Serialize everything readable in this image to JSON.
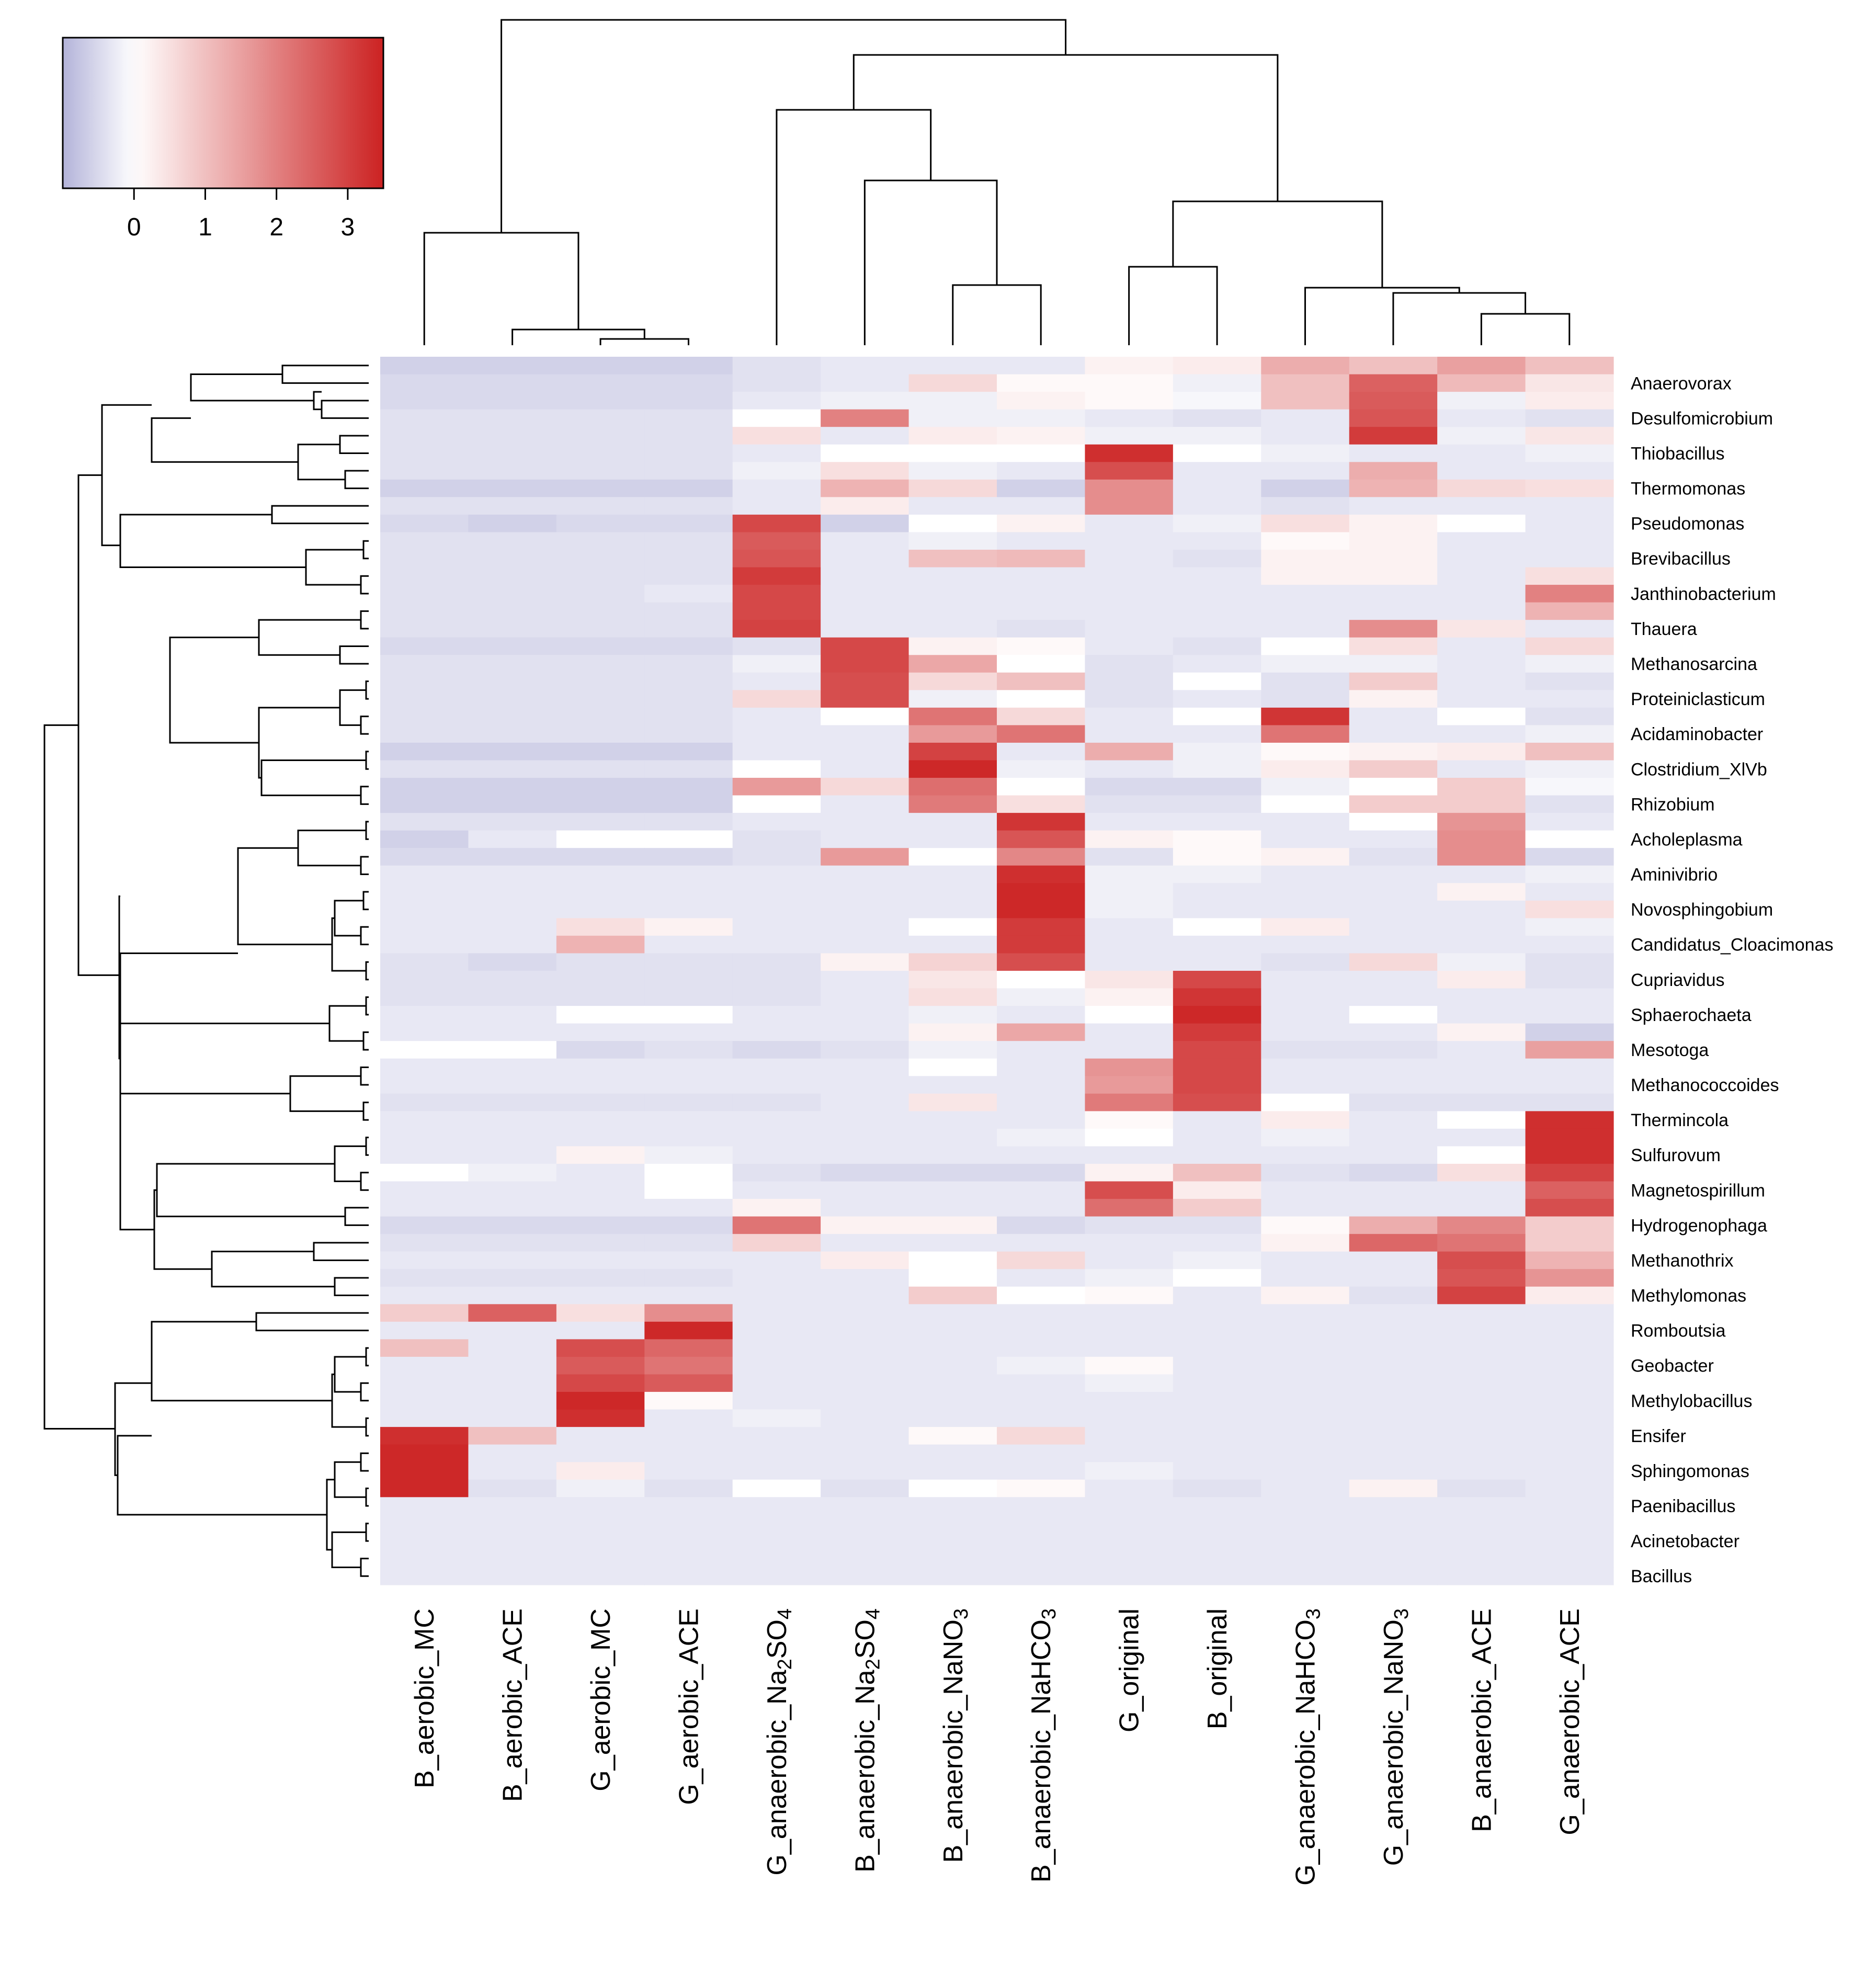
{
  "chart_data": {
    "type": "heatmap",
    "title": "",
    "xlabel": "",
    "ylabel": "",
    "columns": [
      "B_aerobic_MC",
      "B_aerobic_ACE",
      "G_aerobic_MC",
      "G_aerobic_ACE",
      "G_anaerobic_Na2SO4",
      "B_anaerobic_Na2SO4",
      "B_anaerobic_NaNO3",
      "B_anaerobic_NaHCO3",
      "G_original",
      "B_original",
      "G_anaerobic_NaHCO3",
      "G_anaerobic_NaNO3",
      "B_anaerobic_ACE",
      "G_anaerobic_ACE"
    ],
    "column_labels": [
      {
        "base": "B_aerobic_MC",
        "sub": "",
        "tail": ""
      },
      {
        "base": "B_aerobic_ACE",
        "sub": "",
        "tail": ""
      },
      {
        "base": "G_aerobic_MC",
        "sub": "",
        "tail": ""
      },
      {
        "base": "G_aerobic_ACE",
        "sub": "",
        "tail": ""
      },
      {
        "base": "G_anaerobic_Na",
        "sub": "2",
        "tail": "SO",
        "sub2": "4"
      },
      {
        "base": "B_anaerobic_Na",
        "sub": "2",
        "tail": "SO",
        "sub2": "4"
      },
      {
        "base": "B_anaerobic_NaNO",
        "sub": "3",
        "tail": ""
      },
      {
        "base": "B_anaerobic_NaHCO",
        "sub": "3",
        "tail": ""
      },
      {
        "base": "G_original",
        "sub": "",
        "tail": ""
      },
      {
        "base": "B_original",
        "sub": "",
        "tail": ""
      },
      {
        "base": "G_anaerobic_NaHCO",
        "sub": "3",
        "tail": ""
      },
      {
        "base": "G_anaerobic_NaNO",
        "sub": "3",
        "tail": ""
      },
      {
        "base": "B_anaerobic_ACE",
        "sub": "",
        "tail": ""
      },
      {
        "base": "G_anaerobic_ACE",
        "sub": "",
        "tail": ""
      }
    ],
    "row_labels": [
      "Anaerovorax",
      "Desulfomicrobium",
      "Thiobacillus",
      "Thermomonas",
      "Pseudomonas",
      "Brevibacillus",
      "Janthinobacterium",
      "Thauera",
      "Methanosarcina",
      "Proteiniclasticum",
      "Acidaminobacter",
      "Clostridium_XlVb",
      "Rhizobium",
      "Acholeplasma",
      "Aminivibrio",
      "Novosphingobium",
      "Candidatus_Cloacimonas",
      "Cupriavidus",
      "Sphaerochaeta",
      "Mesotoga",
      "Methanococcoides",
      "Thermincola",
      "Sulfurovum",
      "Magnetospirillum",
      "Hydrogenophaga",
      "Methanothrix",
      "Methylomonas",
      "Romboutsia",
      "Geobacter",
      "Methylobacillus",
      "Ensifer",
      "Sphingomonas",
      "Paenibacillus",
      "Acinetobacter",
      "Bacillus"
    ],
    "n_rows": 70,
    "labeled_row_positions": [
      1,
      3,
      5,
      7,
      9,
      11,
      13,
      15,
      17,
      19,
      21,
      23,
      25,
      27,
      29,
      31,
      33,
      35,
      37,
      39,
      41,
      43,
      45,
      47,
      49,
      51,
      53,
      55,
      57,
      59,
      61,
      63,
      65,
      67,
      69
    ],
    "values": [
      [
        -0.6,
        -0.6,
        -0.6,
        -0.6,
        -0.4,
        -0.3,
        -0.3,
        -0.3,
        0.2,
        0.3,
        1.3,
        1.0,
        1.5,
        1.0
      ],
      [
        -0.5,
        -0.5,
        -0.5,
        -0.5,
        -0.4,
        -0.3,
        0.6,
        0.1,
        0.1,
        -0.2,
        1.0,
        2.5,
        1.1,
        0.4
      ],
      [
        -0.5,
        -0.5,
        -0.5,
        -0.5,
        -0.3,
        -0.2,
        -0.2,
        0.2,
        0.1,
        -0.1,
        1.0,
        2.6,
        -0.2,
        0.3
      ],
      [
        -0.4,
        -0.4,
        -0.4,
        -0.4,
        0.0,
        2.0,
        -0.2,
        -0.2,
        -0.3,
        -0.4,
        -0.3,
        2.7,
        -0.3,
        -0.4
      ],
      [
        -0.4,
        -0.4,
        -0.4,
        -0.4,
        0.5,
        -0.3,
        0.3,
        0.2,
        -0.2,
        -0.2,
        -0.3,
        3.1,
        -0.2,
        0.4
      ],
      [
        -0.4,
        -0.4,
        -0.4,
        -0.4,
        -0.3,
        0.0,
        0.0,
        0.0,
        3.3,
        0.0,
        -0.2,
        -0.3,
        -0.3,
        -0.2
      ],
      [
        -0.4,
        -0.4,
        -0.4,
        -0.4,
        -0.2,
        0.5,
        -0.2,
        -0.3,
        2.8,
        -0.3,
        -0.3,
        1.3,
        -0.3,
        -0.3
      ],
      [
        -0.6,
        -0.6,
        -0.6,
        -0.6,
        -0.3,
        1.2,
        0.6,
        -0.6,
        1.8,
        -0.3,
        -0.6,
        1.2,
        0.6,
        0.5
      ],
      [
        -0.4,
        -0.4,
        -0.4,
        -0.4,
        -0.3,
        0.3,
        -0.3,
        -0.3,
        1.8,
        -0.3,
        -0.4,
        -0.3,
        -0.3,
        -0.3
      ],
      [
        -0.5,
        -0.6,
        -0.5,
        -0.5,
        2.9,
        -0.6,
        0.0,
        0.2,
        -0.3,
        -0.2,
        0.5,
        0.2,
        0.0,
        -0.3
      ],
      [
        -0.4,
        -0.4,
        -0.4,
        -0.4,
        2.6,
        -0.3,
        -0.2,
        -0.3,
        -0.3,
        -0.3,
        0.1,
        0.2,
        -0.3,
        -0.3
      ],
      [
        -0.4,
        -0.4,
        -0.4,
        -0.4,
        2.7,
        -0.3,
        1.0,
        1.1,
        -0.3,
        -0.4,
        0.2,
        0.2,
        -0.3,
        -0.3
      ],
      [
        -0.4,
        -0.4,
        -0.4,
        -0.4,
        3.1,
        -0.3,
        -0.3,
        -0.3,
        -0.3,
        -0.3,
        0.2,
        0.2,
        -0.3,
        0.5
      ],
      [
        -0.4,
        -0.4,
        -0.4,
        -0.3,
        2.9,
        -0.3,
        -0.3,
        -0.3,
        -0.3,
        -0.3,
        -0.3,
        -0.3,
        -0.3,
        2.0
      ],
      [
        -0.4,
        -0.4,
        -0.4,
        -0.4,
        2.9,
        -0.3,
        -0.3,
        -0.3,
        -0.3,
        -0.3,
        -0.3,
        -0.3,
        -0.3,
        1.2
      ],
      [
        -0.4,
        -0.4,
        -0.4,
        -0.4,
        3.0,
        -0.3,
        -0.3,
        -0.4,
        -0.3,
        -0.3,
        -0.3,
        1.8,
        0.4,
        -0.3
      ],
      [
        -0.5,
        -0.5,
        -0.5,
        -0.5,
        -0.4,
        2.9,
        0.2,
        0.1,
        -0.3,
        -0.4,
        0.0,
        0.5,
        -0.3,
        0.6
      ],
      [
        -0.4,
        -0.4,
        -0.4,
        -0.4,
        -0.2,
        2.9,
        1.4,
        0.0,
        -0.4,
        -0.3,
        -0.2,
        -0.2,
        -0.3,
        -0.2
      ],
      [
        -0.4,
        -0.4,
        -0.4,
        -0.4,
        -0.3,
        2.8,
        0.6,
        1.0,
        -0.4,
        0.0,
        -0.4,
        0.8,
        -0.3,
        -0.4
      ],
      [
        -0.4,
        -0.4,
        -0.4,
        -0.4,
        0.6,
        2.8,
        -0.2,
        0.0,
        -0.4,
        -0.3,
        -0.4,
        0.2,
        -0.3,
        -0.3
      ],
      [
        -0.4,
        -0.4,
        -0.4,
        -0.4,
        -0.3,
        0.0,
        2.2,
        0.6,
        -0.3,
        0.0,
        3.2,
        -0.3,
        0.0,
        -0.4
      ],
      [
        -0.4,
        -0.4,
        -0.4,
        -0.4,
        -0.3,
        -0.3,
        1.6,
        2.2,
        -0.3,
        -0.3,
        2.2,
        -0.3,
        -0.3,
        -0.2
      ],
      [
        -0.6,
        -0.6,
        -0.6,
        -0.6,
        -0.3,
        -0.3,
        3.0,
        -0.3,
        1.3,
        -0.2,
        0.1,
        0.2,
        0.3,
        1.0
      ],
      [
        -0.4,
        -0.4,
        -0.4,
        -0.4,
        0.0,
        -0.3,
        3.4,
        -0.2,
        -0.3,
        -0.2,
        0.3,
        0.8,
        -0.3,
        -0.2
      ],
      [
        -0.6,
        -0.6,
        -0.6,
        -0.6,
        1.6,
        0.6,
        2.3,
        0.0,
        -0.5,
        -0.5,
        -0.2,
        0.0,
        0.8,
        -0.1
      ],
      [
        -0.6,
        -0.6,
        -0.6,
        -0.6,
        0.0,
        -0.3,
        2.1,
        0.5,
        -0.4,
        -0.4,
        0.0,
        0.8,
        0.8,
        -0.4
      ],
      [
        -0.4,
        -0.4,
        -0.4,
        -0.4,
        -0.3,
        -0.3,
        -0.3,
        3.2,
        -0.3,
        -0.3,
        -0.3,
        0.0,
        1.7,
        -0.3
      ],
      [
        -0.6,
        -0.3,
        0.0,
        0.0,
        -0.4,
        -0.3,
        -0.3,
        2.7,
        0.2,
        0.1,
        -0.3,
        -0.3,
        1.8,
        0.0
      ],
      [
        -0.5,
        -0.5,
        -0.5,
        -0.5,
        -0.4,
        1.6,
        0.0,
        1.9,
        -0.4,
        0.1,
        0.2,
        -0.4,
        1.8,
        -0.5
      ],
      [
        -0.3,
        -0.3,
        -0.3,
        -0.3,
        -0.3,
        -0.3,
        -0.3,
        3.3,
        -0.2,
        -0.2,
        -0.3,
        -0.3,
        -0.3,
        -0.2
      ],
      [
        -0.3,
        -0.3,
        -0.3,
        -0.3,
        -0.3,
        -0.3,
        -0.3,
        3.4,
        -0.2,
        -0.3,
        -0.3,
        -0.3,
        0.2,
        -0.3
      ],
      [
        -0.3,
        -0.3,
        -0.3,
        -0.3,
        -0.3,
        -0.3,
        -0.3,
        3.4,
        -0.2,
        -0.3,
        -0.3,
        -0.3,
        -0.3,
        0.5
      ],
      [
        -0.3,
        -0.3,
        0.5,
        0.2,
        -0.3,
        -0.3,
        0.0,
        3.1,
        -0.3,
        0.0,
        0.3,
        -0.3,
        -0.3,
        -0.2
      ],
      [
        -0.3,
        -0.3,
        1.2,
        -0.3,
        -0.3,
        -0.3,
        -0.3,
        3.1,
        -0.3,
        -0.3,
        -0.3,
        -0.3,
        -0.3,
        -0.3
      ],
      [
        -0.4,
        -0.5,
        -0.4,
        -0.4,
        -0.4,
        0.2,
        0.7,
        2.8,
        -0.3,
        -0.3,
        -0.4,
        0.6,
        -0.2,
        -0.4
      ],
      [
        -0.4,
        -0.4,
        -0.4,
        -0.4,
        -0.4,
        -0.3,
        0.4,
        0.0,
        0.4,
        2.9,
        -0.3,
        -0.3,
        0.3,
        -0.4
      ],
      [
        -0.4,
        -0.4,
        -0.4,
        -0.4,
        -0.4,
        -0.3,
        0.5,
        -0.2,
        0.2,
        3.2,
        -0.3,
        -0.3,
        -0.3,
        -0.3
      ],
      [
        -0.3,
        -0.3,
        0.0,
        0.0,
        -0.3,
        -0.3,
        -0.2,
        -0.3,
        0.0,
        3.4,
        -0.3,
        0.0,
        -0.3,
        -0.3
      ],
      [
        -0.3,
        -0.3,
        -0.3,
        -0.3,
        -0.3,
        -0.3,
        0.2,
        1.4,
        -0.3,
        3.1,
        -0.3,
        -0.3,
        0.2,
        -0.6
      ],
      [
        0.0,
        0.0,
        -0.5,
        -0.4,
        -0.5,
        -0.4,
        -0.2,
        -0.3,
        -0.3,
        2.9,
        -0.4,
        -0.4,
        -0.3,
        1.5
      ],
      [
        -0.3,
        -0.3,
        -0.3,
        -0.3,
        -0.3,
        -0.3,
        0.0,
        -0.3,
        1.7,
        2.9,
        -0.3,
        -0.3,
        -0.3,
        -0.3
      ],
      [
        -0.3,
        -0.3,
        -0.3,
        -0.3,
        -0.3,
        -0.3,
        -0.3,
        -0.3,
        1.6,
        2.9,
        -0.3,
        -0.3,
        -0.3,
        -0.3
      ],
      [
        -0.4,
        -0.4,
        -0.4,
        -0.4,
        -0.4,
        -0.3,
        0.4,
        -0.3,
        2.1,
        2.8,
        0.0,
        -0.4,
        -0.4,
        -0.4
      ],
      [
        -0.3,
        -0.3,
        -0.3,
        -0.3,
        -0.3,
        -0.3,
        -0.3,
        -0.3,
        0.1,
        -0.3,
        0.3,
        -0.3,
        0.0,
        3.3
      ],
      [
        -0.3,
        -0.3,
        -0.3,
        -0.3,
        -0.3,
        -0.3,
        -0.3,
        -0.2,
        0.0,
        -0.3,
        -0.2,
        -0.3,
        -0.3,
        3.3
      ],
      [
        -0.3,
        -0.3,
        0.2,
        -0.2,
        -0.3,
        -0.3,
        -0.3,
        -0.3,
        -0.3,
        -0.3,
        -0.3,
        -0.3,
        0.0,
        3.3
      ],
      [
        0.0,
        -0.2,
        -0.3,
        0.0,
        -0.4,
        -0.5,
        -0.5,
        -0.5,
        0.2,
        1.0,
        -0.4,
        -0.5,
        0.5,
        3.0
      ],
      [
        -0.3,
        -0.3,
        -0.3,
        0.0,
        -0.3,
        -0.3,
        -0.3,
        -0.3,
        2.8,
        0.3,
        -0.3,
        -0.3,
        -0.3,
        2.5
      ],
      [
        -0.3,
        -0.3,
        -0.3,
        -0.3,
        0.2,
        -0.3,
        -0.3,
        -0.3,
        2.3,
        0.8,
        -0.3,
        -0.3,
        -0.3,
        2.8
      ],
      [
        -0.5,
        -0.5,
        -0.5,
        -0.5,
        2.2,
        0.2,
        0.2,
        -0.5,
        -0.4,
        -0.4,
        0.1,
        1.3,
        1.9,
        0.8
      ],
      [
        -0.4,
        -0.4,
        -0.4,
        -0.4,
        0.7,
        -0.3,
        -0.3,
        -0.3,
        -0.3,
        -0.3,
        0.2,
        2.4,
        2.2,
        0.8
      ],
      [
        -0.3,
        -0.3,
        -0.3,
        -0.3,
        -0.3,
        0.3,
        0.0,
        0.6,
        -0.3,
        -0.2,
        -0.3,
        -0.3,
        2.8,
        1.2
      ],
      [
        -0.4,
        -0.4,
        -0.4,
        -0.4,
        -0.3,
        -0.3,
        0.0,
        -0.3,
        -0.2,
        0.0,
        -0.3,
        -0.3,
        2.7,
        1.7
      ],
      [
        -0.3,
        -0.3,
        -0.3,
        -0.3,
        -0.3,
        -0.3,
        0.8,
        0.0,
        0.1,
        -0.3,
        0.2,
        -0.4,
        3.0,
        0.3
      ],
      [
        0.8,
        2.5,
        0.5,
        1.8,
        -0.3,
        -0.3,
        -0.3,
        -0.3,
        -0.3,
        -0.3,
        -0.3,
        -0.3,
        -0.3,
        -0.3
      ],
      [
        -0.3,
        -0.3,
        -0.3,
        3.4,
        -0.3,
        -0.3,
        -0.3,
        -0.3,
        -0.3,
        -0.3,
        -0.3,
        -0.3,
        -0.3,
        -0.3
      ],
      [
        1.0,
        -0.3,
        2.8,
        2.4,
        -0.3,
        -0.3,
        -0.3,
        -0.3,
        -0.3,
        -0.3,
        -0.3,
        -0.3,
        -0.3,
        -0.3
      ],
      [
        -0.3,
        -0.3,
        2.6,
        2.2,
        -0.3,
        -0.3,
        -0.3,
        -0.2,
        0.1,
        -0.3,
        -0.3,
        -0.3,
        -0.3,
        -0.3
      ],
      [
        -0.3,
        -0.3,
        2.9,
        2.6,
        -0.3,
        -0.3,
        -0.3,
        -0.3,
        -0.2,
        -0.3,
        -0.3,
        -0.3,
        -0.3,
        -0.3
      ],
      [
        -0.3,
        -0.3,
        3.4,
        0.1,
        -0.3,
        -0.3,
        -0.3,
        -0.3,
        -0.3,
        -0.3,
        -0.3,
        -0.3,
        -0.3,
        -0.3
      ],
      [
        -0.3,
        -0.3,
        3.3,
        -0.3,
        -0.2,
        -0.3,
        -0.3,
        -0.3,
        -0.3,
        -0.3,
        -0.3,
        -0.3,
        -0.3,
        -0.3
      ],
      [
        3.3,
        1.0,
        -0.3,
        -0.3,
        -0.3,
        -0.3,
        0.1,
        0.6,
        -0.3,
        -0.3,
        -0.3,
        -0.3,
        -0.3,
        -0.3
      ],
      [
        3.4,
        -0.3,
        -0.3,
        -0.3,
        -0.3,
        -0.3,
        -0.3,
        -0.3,
        -0.3,
        -0.3,
        -0.3,
        -0.3,
        -0.3,
        -0.3
      ],
      [
        3.4,
        -0.3,
        0.3,
        -0.3,
        -0.3,
        -0.3,
        -0.3,
        -0.3,
        -0.2,
        -0.3,
        -0.3,
        -0.3,
        -0.3,
        -0.3
      ],
      [
        3.4,
        -0.4,
        -0.2,
        -0.4,
        0.0,
        -0.4,
        0.0,
        0.1,
        -0.3,
        -0.4,
        -0.3,
        0.2,
        -0.4,
        -0.3
      ],
      [
        -0.3,
        -0.3,
        -0.3,
        -0.3,
        -0.3,
        -0.3,
        -0.3,
        -0.3,
        -0.3,
        -0.3,
        -0.3,
        -0.3,
        -0.3,
        -0.3
      ],
      [
        -0.3,
        -0.3,
        -0.3,
        -0.3,
        -0.3,
        -0.3,
        -0.3,
        -0.3,
        -0.3,
        -0.3,
        -0.3,
        -0.3,
        -0.3,
        -0.3
      ],
      [
        -0.3,
        -0.3,
        -0.3,
        -0.3,
        -0.3,
        -0.3,
        -0.3,
        -0.3,
        -0.3,
        -0.3,
        -0.3,
        -0.3,
        -0.3,
        -0.3
      ],
      [
        -0.3,
        -0.3,
        -0.3,
        -0.3,
        -0.3,
        -0.3,
        -0.3,
        -0.3,
        -0.3,
        -0.3,
        -0.3,
        -0.3,
        -0.3,
        -0.3
      ],
      [
        -0.3,
        -0.3,
        -0.3,
        -0.3,
        -0.3,
        -0.3,
        -0.3,
        -0.3,
        -0.3,
        -0.3,
        -0.3,
        -0.3,
        -0.3,
        -0.3
      ]
    ],
    "color_scale": {
      "min": -1,
      "max": 3.5,
      "stops": [
        {
          "value": -1,
          "color": "#b3b3d9"
        },
        {
          "value": 0,
          "color": "#ffffff"
        },
        {
          "value": 3.5,
          "color": "#cc2222"
        }
      ]
    },
    "color_key": {
      "ticks": [
        0,
        1,
        2,
        3
      ],
      "tick_labels": [
        "0",
        "1",
        "2",
        "3"
      ]
    },
    "column_dendrogram": true,
    "row_dendrogram": true,
    "legend_position": "top-left"
  }
}
